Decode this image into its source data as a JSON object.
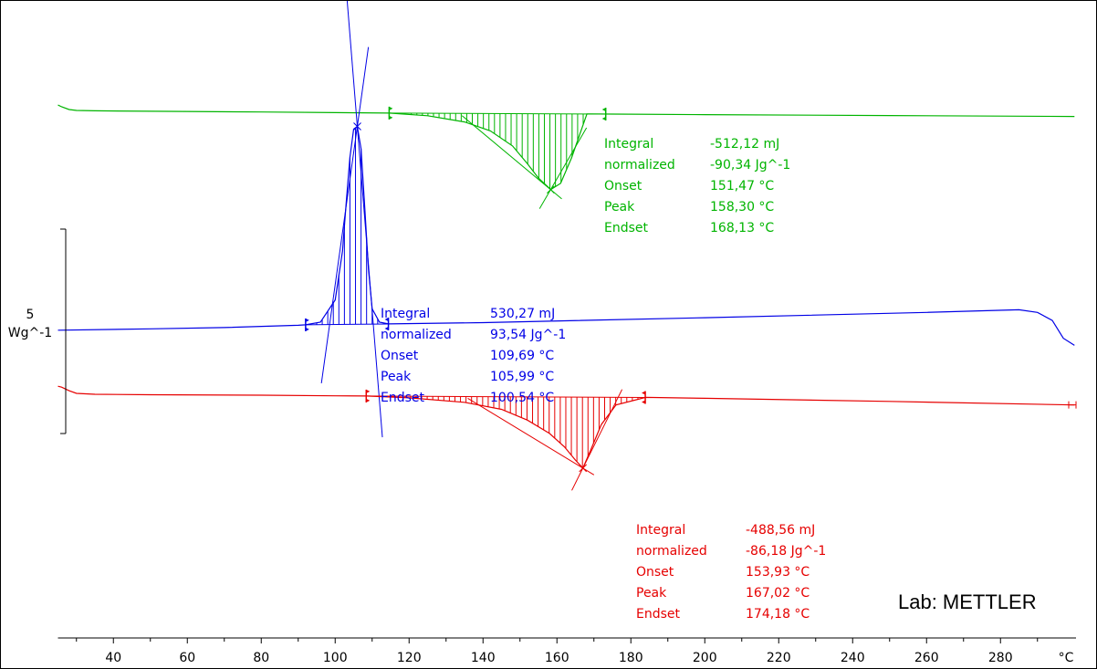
{
  "chart_data": {
    "type": "line",
    "title": "",
    "xlabel": "",
    "x_unit": "°C",
    "xlim": [
      25,
      300
    ],
    "x_ticks": [
      40,
      60,
      80,
      100,
      120,
      140,
      160,
      180,
      200,
      220,
      240,
      260,
      280
    ],
    "y_scale_bar": {
      "value": "5",
      "unit": "Wg^-1"
    },
    "grid": false,
    "watermark": "Lab: METTLER",
    "series": [
      {
        "color": "#00b400",
        "x": [
          25,
          26,
          28,
          30,
          35,
          50,
          80,
          100,
          114.6,
          125,
          135,
          142,
          148,
          152,
          155,
          158.3,
          161,
          164,
          168.1,
          175,
          200,
          250,
          300
        ],
        "y": [
          -0.4,
          -0.2,
          0.1,
          0.2,
          0.25,
          0.3,
          0.38,
          0.45,
          0.5,
          0.8,
          1.5,
          2.5,
          4.2,
          6.2,
          7.8,
          9.1,
          8.4,
          5.5,
          0.6,
          0.62,
          0.68,
          0.78,
          0.88
        ],
        "integration_start": 114.6,
        "integration_end": 173.2,
        "annotation": [
          {
            "label": "Integral",
            "value": "-512,12 mJ"
          },
          {
            "label": "normalized",
            "value": "-90,34 Jg^-1"
          },
          {
            "label": "Onset",
            "value": "151,47 °C"
          },
          {
            "label": "Peak",
            "value": "158,30 °C"
          },
          {
            "label": "Endset",
            "value": "168,13 °C"
          }
        ]
      },
      {
        "color": "#0000e6",
        "x": [
          25,
          50,
          70,
          90,
          92,
          96,
          100,
          102,
          103,
          104,
          105,
          105.99,
          107,
          108,
          109,
          110,
          112,
          114.4,
          140,
          200,
          260,
          285,
          290,
          294,
          297,
          300
        ],
        "y": [
          24.9,
          24.75,
          24.6,
          24.35,
          24.3,
          24,
          21.5,
          16,
          10.5,
          5.5,
          2.3,
          2.0,
          4.5,
          11,
          18,
          22.5,
          24,
          24.2,
          24.05,
          23.5,
          22.9,
          22.6,
          22.9,
          23.8,
          25.8,
          26.6
        ],
        "integration_start": 92.0,
        "integration_end": 114.4,
        "annotation": [
          {
            "label": "Integral",
            "value": "530,27 mJ"
          },
          {
            "label": "normalized",
            "value": "93,54 Jg^-1"
          },
          {
            "label": "Onset",
            "value": "109,69 °C"
          },
          {
            "label": "Peak",
            "value": "105,99 °C"
          },
          {
            "label": "Endset",
            "value": "100,54 °C"
          }
        ]
      },
      {
        "color": "#e60000",
        "x": [
          25,
          26,
          28,
          30,
          35,
          50,
          80,
          100,
          108.4,
          120,
          135,
          145,
          152,
          158,
          162,
          165,
          167.02,
          169,
          172,
          176,
          184,
          200,
          250,
          300
        ],
        "y": [
          31.2,
          31.3,
          31.7,
          32.0,
          32.1,
          32.15,
          32.2,
          32.28,
          32.3,
          32.5,
          33.0,
          33.8,
          35.0,
          36.5,
          38.0,
          39.5,
          40.4,
          38.5,
          35.5,
          33.3,
          32.45,
          32.55,
          32.9,
          33.3
        ],
        "integration_start": 108.4,
        "integration_end": 183.9,
        "annotation": [
          {
            "label": "Integral",
            "value": "-488,56 mJ"
          },
          {
            "label": "normalized",
            "value": "-86,18 Jg^-1"
          },
          {
            "label": "Onset",
            "value": "153,93 °C"
          },
          {
            "label": "Peak",
            "value": "167,02 °C"
          },
          {
            "label": "Endset",
            "value": "174,18 °C"
          }
        ]
      }
    ]
  }
}
